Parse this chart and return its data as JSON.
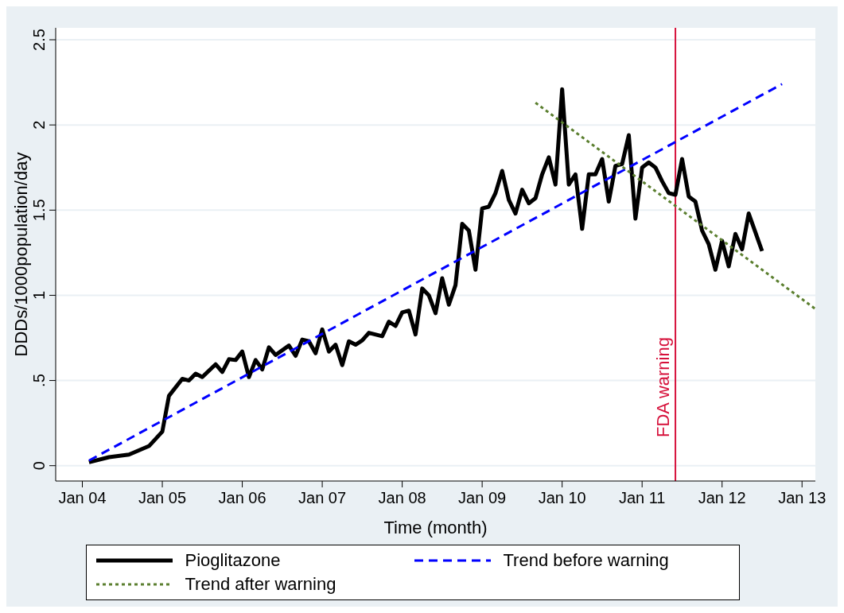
{
  "chart_data": {
    "type": "line",
    "xlabel": "Time (month)",
    "ylabel": "DDDs/1000population/day",
    "xlim": [
      "2003-09",
      "2013-03"
    ],
    "ylim": [
      -0.09,
      2.57
    ],
    "xticks": [
      {
        "value": "2004-01",
        "label": "Jan 04"
      },
      {
        "value": "2005-01",
        "label": "Jan 05"
      },
      {
        "value": "2006-01",
        "label": "Jan 06"
      },
      {
        "value": "2007-01",
        "label": "Jan 07"
      },
      {
        "value": "2008-01",
        "label": "Jan 08"
      },
      {
        "value": "2009-01",
        "label": "Jan 09"
      },
      {
        "value": "2010-01",
        "label": "Jan 10"
      },
      {
        "value": "2011-01",
        "label": "Jan 11"
      },
      {
        "value": "2012-01",
        "label": "Jan 12"
      },
      {
        "value": "2013-01",
        "label": "Jan 13"
      }
    ],
    "yticks": [
      0,
      {
        "value": 0.5,
        "label": ".5"
      },
      1,
      {
        "value": 1.5,
        "label": "1.5"
      },
      2,
      {
        "value": 2.5,
        "label": "2.5"
      }
    ],
    "grid": "y",
    "legend": "bottom",
    "marker": "none",
    "ref_lines": [
      {
        "axis": "x",
        "value": "2011-06",
        "label": "FDA warning",
        "color": "#d6103a"
      }
    ],
    "series": [
      {
        "name": "Pioglitazone",
        "color": "#000000",
        "line_style": "solid",
        "x": [
          "2004-02",
          "2004-05",
          "2004-08",
          "2004-11",
          "2005-01",
          "2005-02",
          "2005-04",
          "2005-05",
          "2005-06",
          "2005-07",
          "2005-09",
          "2005-10",
          "2005-11",
          "2005-12",
          "2006-01",
          "2006-02",
          "2006-03",
          "2006-04",
          "2006-05",
          "2006-06",
          "2006-08",
          "2006-09",
          "2006-10",
          "2006-11",
          "2006-12",
          "2007-01",
          "2007-02",
          "2007-03",
          "2007-04",
          "2007-05",
          "2007-06",
          "2007-07",
          "2007-08",
          "2007-10",
          "2007-11",
          "2007-12",
          "2008-01",
          "2008-02",
          "2008-03",
          "2008-04",
          "2008-05",
          "2008-06",
          "2008-07",
          "2008-08",
          "2008-09",
          "2008-10",
          "2008-11",
          "2008-12",
          "2009-01",
          "2009-02",
          "2009-03",
          "2009-04",
          "2009-05",
          "2009-06",
          "2009-07",
          "2009-08",
          "2009-09",
          "2009-10",
          "2009-11",
          "2009-12",
          "2010-01",
          "2010-02",
          "2010-03",
          "2010-04",
          "2010-05",
          "2010-06",
          "2010-07",
          "2010-08",
          "2010-09",
          "2010-10",
          "2010-11",
          "2010-12",
          "2011-01",
          "2011-02",
          "2011-03",
          "2011-04",
          "2011-05",
          "2011-06",
          "2011-07",
          "2011-08",
          "2011-09",
          "2011-10",
          "2011-11",
          "2011-12",
          "2012-01",
          "2012-02",
          "2012-03",
          "2012-04",
          "2012-05",
          "2012-06",
          "2012-07"
        ],
        "values": [
          0.02,
          0.05,
          0.065,
          0.115,
          0.2,
          0.41,
          0.51,
          0.5,
          0.54,
          0.52,
          0.595,
          0.55,
          0.625,
          0.62,
          0.67,
          0.52,
          0.62,
          0.565,
          0.695,
          0.65,
          0.705,
          0.645,
          0.74,
          0.73,
          0.66,
          0.8,
          0.67,
          0.71,
          0.59,
          0.73,
          0.71,
          0.735,
          0.78,
          0.76,
          0.845,
          0.82,
          0.9,
          0.91,
          0.77,
          1.04,
          1.0,
          0.895,
          1.1,
          0.945,
          1.06,
          1.42,
          1.38,
          1.15,
          1.51,
          1.52,
          1.6,
          1.73,
          1.56,
          1.48,
          1.62,
          1.54,
          1.57,
          1.71,
          1.81,
          1.65,
          2.21,
          1.65,
          1.71,
          1.39,
          1.71,
          1.71,
          1.8,
          1.55,
          1.76,
          1.77,
          1.94,
          1.45,
          1.75,
          1.78,
          1.75,
          1.67,
          1.6,
          1.59,
          1.8,
          1.58,
          1.55,
          1.38,
          1.3,
          1.15,
          1.32,
          1.17,
          1.36,
          1.27,
          1.48,
          1.37,
          1.26
        ]
      },
      {
        "name": "Trend before warning",
        "color": "#0000ff",
        "line_style": "dashed",
        "x": [
          "2004-02",
          "2012-10"
        ],
        "values": [
          0.03,
          2.24
        ]
      },
      {
        "name": "Trend after warning",
        "color": "#5b7f2f",
        "line_style": "dotted",
        "x": [
          "2009-09",
          "2013-03"
        ],
        "values": [
          2.13,
          0.92
        ]
      }
    ]
  }
}
